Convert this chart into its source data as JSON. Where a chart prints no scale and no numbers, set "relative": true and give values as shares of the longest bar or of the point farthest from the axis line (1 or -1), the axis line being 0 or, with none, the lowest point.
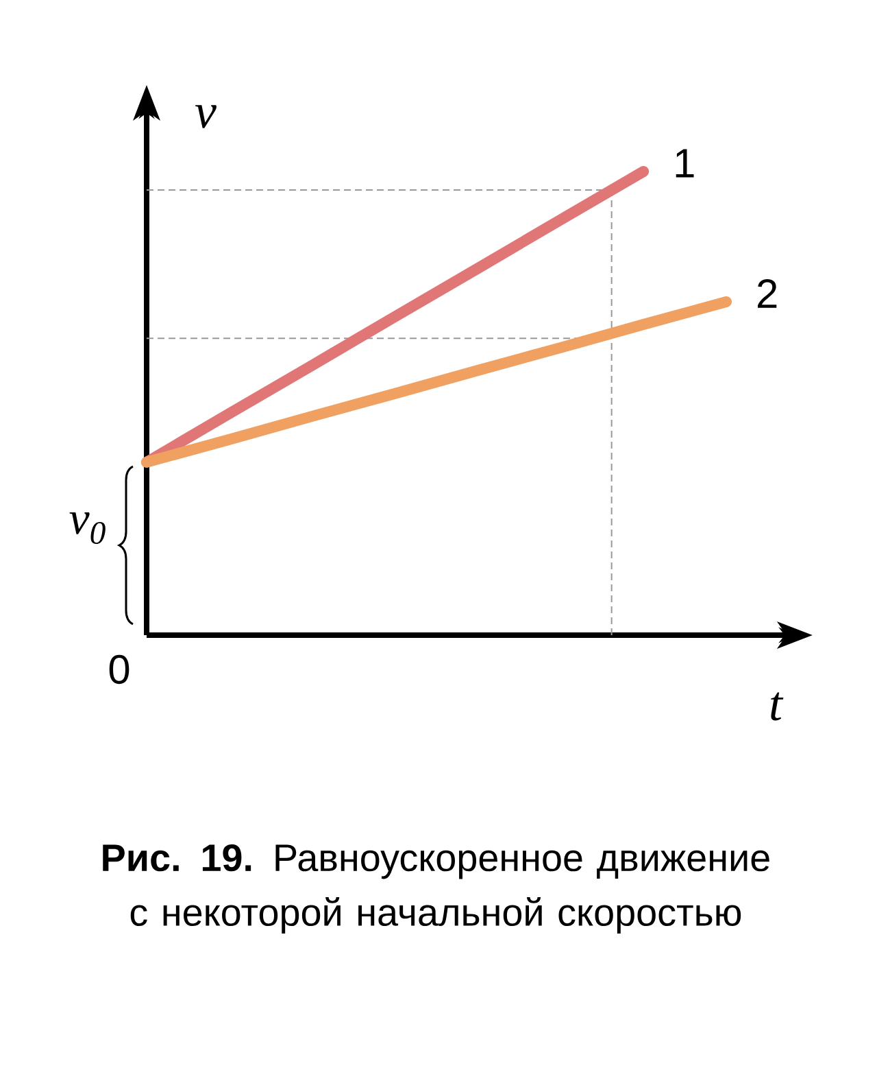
{
  "chart_data": {
    "type": "line",
    "relative": true,
    "xlabel": "t",
    "ylabel": "v",
    "categories": [
      null,
      null,
      null,
      null,
      null,
      null,
      null,
      null
    ],
    "series": [
      {
        "name": "1",
        "color": "#e07676",
        "values": [
          0.373,
          0.478,
          0.582,
          0.687,
          0.791,
          0.896,
          1.0,
          null
        ]
      },
      {
        "name": "2",
        "color": "#f0a060",
        "values": [
          0.373,
          0.422,
          0.472,
          0.521,
          0.571,
          0.62,
          0.67,
          0.719
        ]
      }
    ],
    "ref_lines": [
      {
        "axis": "y",
        "value": 0.96,
        "line_style": "dashed",
        "color": "#999999"
      },
      {
        "axis": "y",
        "value": 0.64,
        "line_style": "dashed",
        "color": "#999999"
      }
    ],
    "annotations": [
      "0",
      "v$_{0}$",
      "**Рис. 19.** Равноускоренное движение с некоторой начальной скоростью"
    ]
  }
}
